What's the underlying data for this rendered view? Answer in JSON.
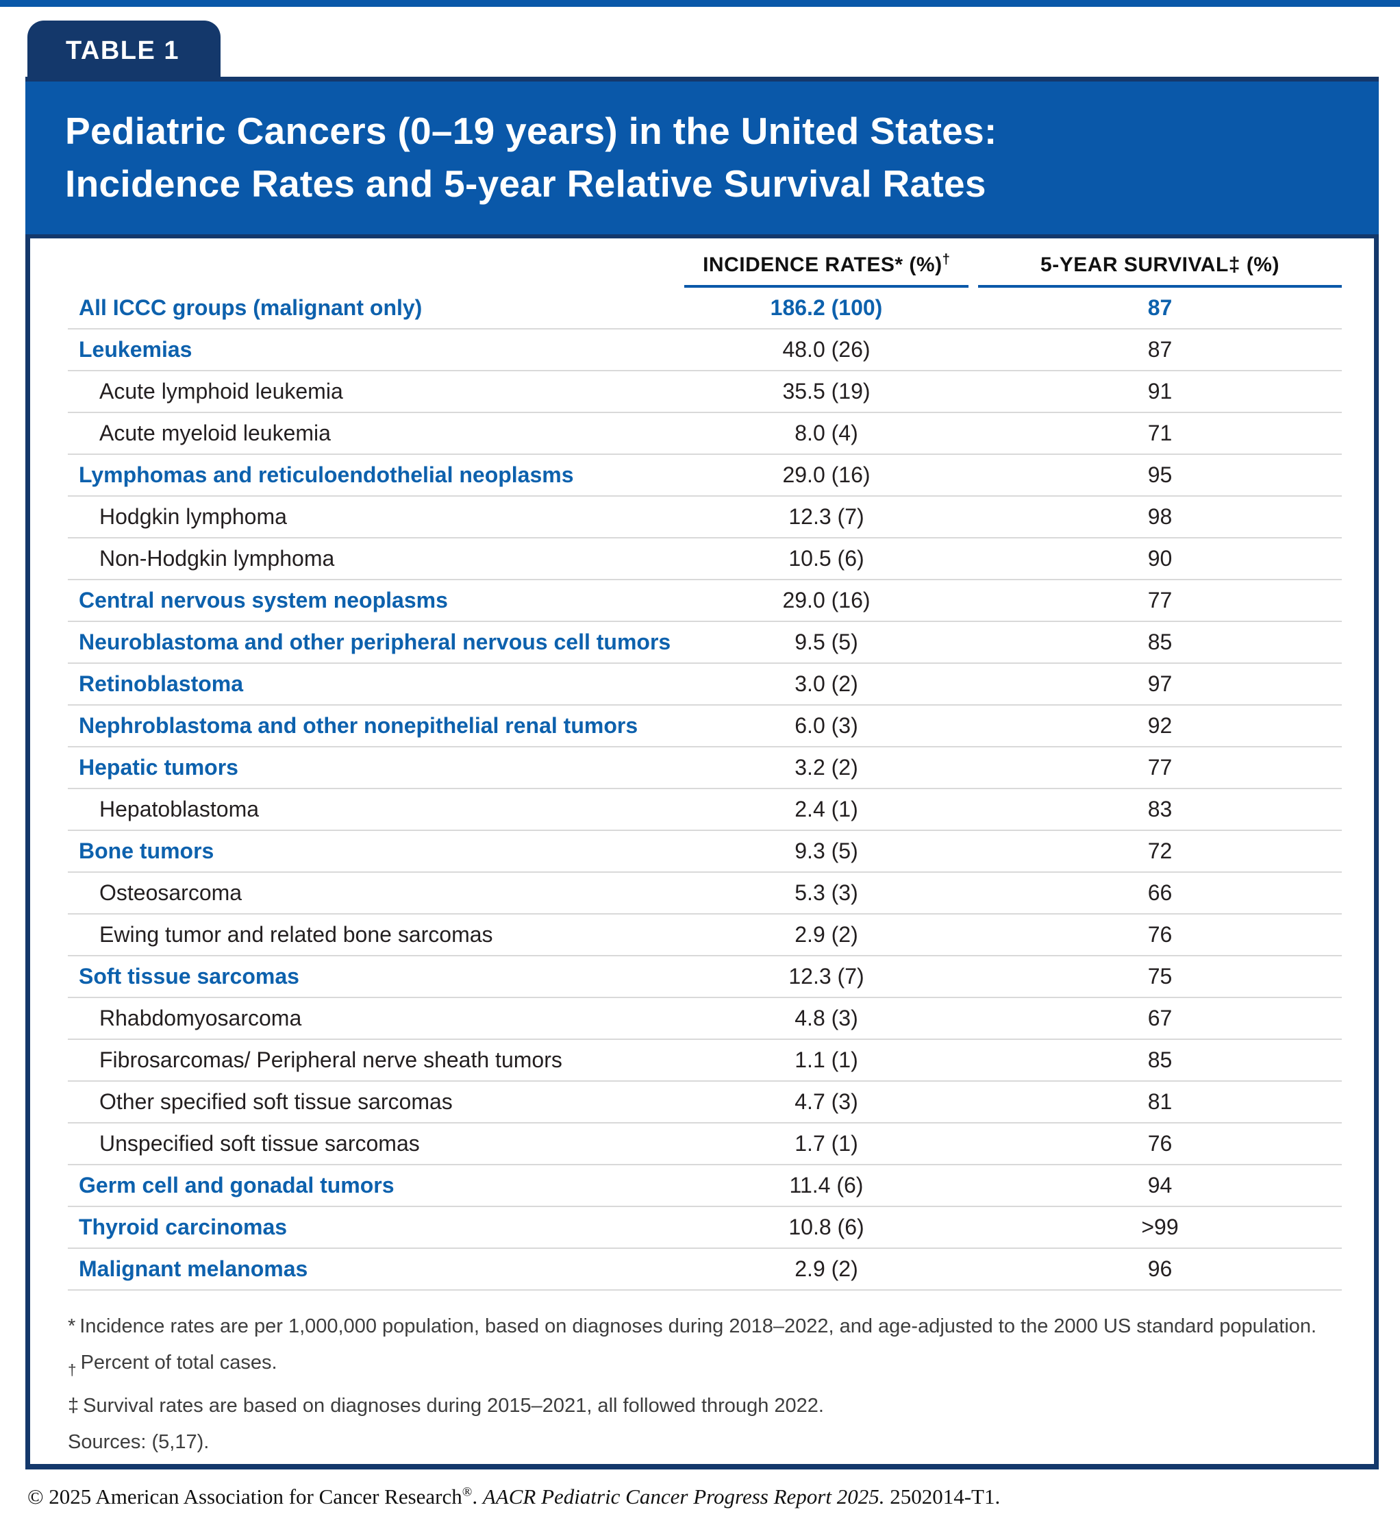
{
  "page": {
    "table_label": "TABLE 1",
    "title_line1": "Pediatric Cancers (0–19 years) in the United States:",
    "title_line2": "Incidence Rates and 5-year Relative Survival Rates"
  },
  "colors": {
    "navy": "#14386b",
    "band_blue": "#0a58a9",
    "row_blue": "#0d61ad",
    "separator_gray": "#d9d9d9",
    "text_black": "#231f20"
  },
  "table": {
    "columns": [
      {
        "parts": [
          {
            "t": "INCIDENCE RATES*",
            "sup": false
          },
          {
            "t": " (%)",
            "sup": false
          },
          {
            "t": "†",
            "sup": true
          }
        ]
      },
      {
        "parts": [
          {
            "t": "5-YEAR SURVIVAL‡",
            "sup": false
          },
          {
            "t": " (%)",
            "sup": false
          }
        ]
      }
    ],
    "rows": [
      {
        "label": "All ICCC groups (malignant only)",
        "indent": false,
        "group": true,
        "highlight": true,
        "incidence": "186.2 (100)",
        "survival": "87"
      },
      {
        "label": "Leukemias",
        "indent": false,
        "group": true,
        "highlight": false,
        "incidence": "48.0 (26)",
        "survival": "87"
      },
      {
        "label": "Acute lymphoid leukemia",
        "indent": true,
        "group": false,
        "highlight": false,
        "incidence": "35.5 (19)",
        "survival": "91"
      },
      {
        "label": "Acute myeloid leukemia",
        "indent": true,
        "group": false,
        "highlight": false,
        "incidence": "8.0 (4)",
        "survival": "71"
      },
      {
        "label": "Lymphomas and reticuloendothelial neoplasms",
        "indent": false,
        "group": true,
        "highlight": false,
        "incidence": "29.0 (16)",
        "survival": "95"
      },
      {
        "label": "Hodgkin lymphoma",
        "indent": true,
        "group": false,
        "highlight": false,
        "incidence": "12.3 (7)",
        "survival": "98"
      },
      {
        "label": "Non-Hodgkin lymphoma",
        "indent": true,
        "group": false,
        "highlight": false,
        "incidence": "10.5 (6)",
        "survival": "90"
      },
      {
        "label": "Central nervous system neoplasms",
        "indent": false,
        "group": true,
        "highlight": false,
        "incidence": "29.0 (16)",
        "survival": "77"
      },
      {
        "label": "Neuroblastoma and other peripheral nervous cell tumors",
        "indent": false,
        "group": true,
        "highlight": false,
        "incidence": "9.5 (5)",
        "survival": "85"
      },
      {
        "label": "Retinoblastoma",
        "indent": false,
        "group": true,
        "highlight": false,
        "incidence": "3.0 (2)",
        "survival": "97"
      },
      {
        "label": "Nephroblastoma and other nonepithelial renal tumors",
        "indent": false,
        "group": true,
        "highlight": false,
        "incidence": "6.0 (3)",
        "survival": "92"
      },
      {
        "label": "Hepatic tumors",
        "indent": false,
        "group": true,
        "highlight": false,
        "incidence": "3.2 (2)",
        "survival": "77"
      },
      {
        "label": "Hepatoblastoma",
        "indent": true,
        "group": false,
        "highlight": false,
        "incidence": "2.4 (1)",
        "survival": "83"
      },
      {
        "label": "Bone tumors",
        "indent": false,
        "group": true,
        "highlight": false,
        "incidence": "9.3 (5)",
        "survival": "72"
      },
      {
        "label": "Osteosarcoma",
        "indent": true,
        "group": false,
        "highlight": false,
        "incidence": "5.3 (3)",
        "survival": "66"
      },
      {
        "label": "Ewing tumor and related bone sarcomas",
        "indent": true,
        "group": false,
        "highlight": false,
        "incidence": "2.9 (2)",
        "survival": "76"
      },
      {
        "label": "Soft tissue sarcomas",
        "indent": false,
        "group": true,
        "highlight": false,
        "incidence": "12.3 (7)",
        "survival": "75"
      },
      {
        "label": "Rhabdomyosarcoma",
        "indent": true,
        "group": false,
        "highlight": false,
        "incidence": "4.8 (3)",
        "survival": "67"
      },
      {
        "label": "Fibrosarcomas/ Peripheral nerve sheath tumors",
        "indent": true,
        "group": false,
        "highlight": false,
        "incidence": "1.1 (1)",
        "survival": "85"
      },
      {
        "label": "Other specified soft tissue sarcomas",
        "indent": true,
        "group": false,
        "highlight": false,
        "incidence": "4.7 (3)",
        "survival": "81"
      },
      {
        "label": "Unspecified soft tissue sarcomas",
        "indent": true,
        "group": false,
        "highlight": false,
        "incidence": "1.7 (1)",
        "survival": "76"
      },
      {
        "label": "Germ cell and gonadal tumors",
        "indent": false,
        "group": true,
        "highlight": false,
        "incidence": "11.4 (6)",
        "survival": "94"
      },
      {
        "label": "Thyroid carcinomas",
        "indent": false,
        "group": true,
        "highlight": false,
        "incidence": "10.8 (6)",
        "survival": ">99"
      },
      {
        "label": "Malignant melanomas",
        "indent": false,
        "group": true,
        "highlight": false,
        "incidence": "2.9 (2)",
        "survival": "96"
      }
    ]
  },
  "footnotes": [
    {
      "marker": "*",
      "sup": false,
      "text": "Incidence rates are per 1,000,000 population, based on diagnoses during 2018–2022, and age-adjusted to the 2000 US standard population."
    },
    {
      "marker": "†",
      "sup": true,
      "text": "Percent of total cases."
    },
    {
      "marker": "‡",
      "sup": false,
      "text": "Survival rates are based on diagnoses during 2015–2021, all followed through 2022."
    },
    {
      "marker": "",
      "sup": false,
      "text": "Sources: (5,17)."
    }
  ],
  "copyright": {
    "prefix": "© 2025 American Association for Cancer Research",
    "reg": "®",
    "separator": ". ",
    "italic": "AACR Pediatric Cancer Progress Report 2025.",
    "suffix": " 2502014-T1."
  }
}
